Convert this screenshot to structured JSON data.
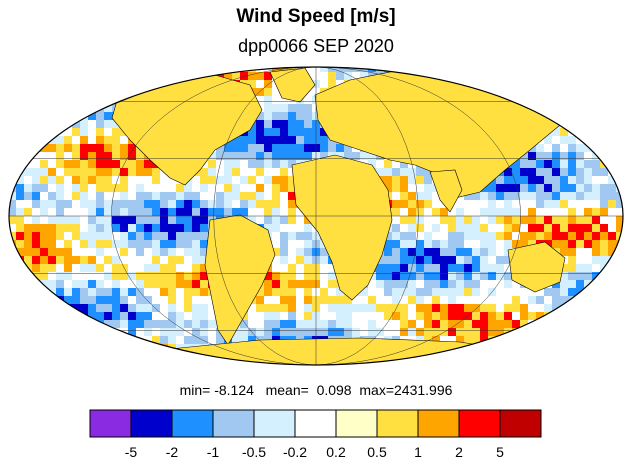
{
  "title": "Wind Speed [m/s]",
  "subtitle": "dpp0066 SEP 2020",
  "stats": {
    "min_label": "min=",
    "min_value": "-8.124",
    "mean_label": "mean=",
    "mean_value": "0.098",
    "max_label": "max=",
    "max_value": "2431.996"
  },
  "colorbar": {
    "colors": [
      "#8a2be2",
      "#0000cd",
      "#1e90ff",
      "#a0c8f0",
      "#d4f0ff",
      "#ffffff",
      "#ffffc8",
      "#ffe040",
      "#ffa500",
      "#ff0000",
      "#c00000"
    ],
    "tick_labels": [
      "-5",
      "-2",
      "-1",
      "-0.5",
      "-0.2",
      "0.2",
      "0.5",
      "1",
      "2",
      "5"
    ]
  },
  "map": {
    "projection": "mollweide",
    "graticule": true,
    "ocean_palette": [
      "#0000cd",
      "#1e90ff",
      "#a0c8f0",
      "#d4f0ff",
      "#ffffff",
      "#ffe040",
      "#ffa500",
      "#ff0000"
    ],
    "land_palette": [
      "#ffe040",
      "#ffa500",
      "#ffffc8",
      "#ffffff"
    ]
  }
}
